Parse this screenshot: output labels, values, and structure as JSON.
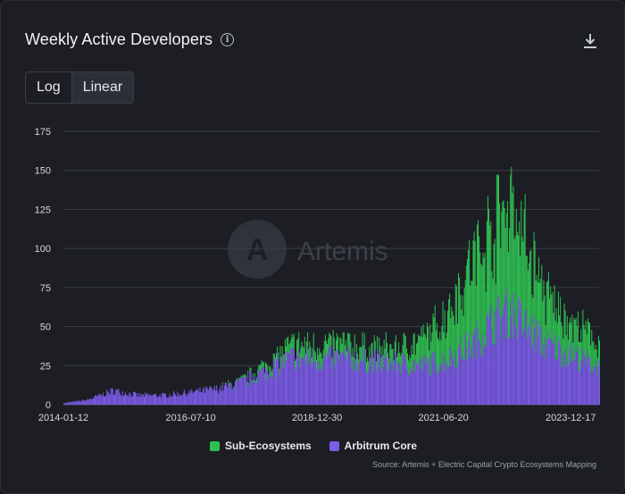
{
  "header": {
    "title": "Weekly Active Developers",
    "info_icon": "info-icon",
    "download_icon": "download-icon"
  },
  "scale_toggle": {
    "options": [
      "Log",
      "Linear"
    ],
    "selected": "Linear"
  },
  "legend": [
    {
      "label": "Sub-Ecosystems",
      "color": "#2fc152"
    },
    {
      "label": "Arbitrum Core",
      "color": "#7c5ce8"
    }
  ],
  "watermark": "Artemis",
  "source": "Source: Artemis + Electric Capital Crypto Ecosystems Mapping",
  "chart_data": {
    "type": "bar",
    "stacked": true,
    "title": "Weekly Active Developers",
    "xlabel": "",
    "ylabel": "",
    "ylim": [
      0,
      175
    ],
    "yticks": [
      0,
      25,
      50,
      75,
      100,
      125,
      150,
      175
    ],
    "xtick_labels": [
      "2014-01-12",
      "2016-07-10",
      "2018-12-30",
      "2021-06-20",
      "2023-12-17"
    ],
    "x_range": [
      "2014-01-12",
      "2024-07-07"
    ],
    "grid": true,
    "legend_position": "bottom",
    "series": [
      {
        "name": "Arbitrum Core",
        "color": "#7c5ce8",
        "points": [
          [
            "2014-01-12",
            1
          ],
          [
            "2014-07-01",
            3
          ],
          [
            "2015-01-01",
            9
          ],
          [
            "2015-07-01",
            6
          ],
          [
            "2016-01-01",
            6
          ],
          [
            "2016-07-10",
            8
          ],
          [
            "2017-01-01",
            10
          ],
          [
            "2017-07-01",
            14
          ],
          [
            "2018-01-01",
            22
          ],
          [
            "2018-07-01",
            30
          ],
          [
            "2018-12-30",
            29
          ],
          [
            "2019-07-01",
            30
          ],
          [
            "2020-01-01",
            28
          ],
          [
            "2020-07-01",
            27
          ],
          [
            "2021-01-01",
            25
          ],
          [
            "2021-06-20",
            28
          ],
          [
            "2022-01-01",
            38
          ],
          [
            "2022-07-01",
            55
          ],
          [
            "2022-10-15",
            60
          ],
          [
            "2023-01-01",
            52
          ],
          [
            "2023-07-01",
            38
          ],
          [
            "2023-12-17",
            32
          ],
          [
            "2024-07-07",
            24
          ]
        ]
      },
      {
        "name": "Sub-Ecosystems",
        "color": "#2fc152",
        "points": [
          [
            "2014-01-12",
            0
          ],
          [
            "2014-07-01",
            0
          ],
          [
            "2015-01-01",
            0
          ],
          [
            "2015-07-01",
            0
          ],
          [
            "2016-01-01",
            0
          ],
          [
            "2016-07-10",
            0
          ],
          [
            "2017-01-01",
            0
          ],
          [
            "2017-07-01",
            1
          ],
          [
            "2018-01-01",
            4
          ],
          [
            "2018-07-01",
            8
          ],
          [
            "2018-12-30",
            9
          ],
          [
            "2019-07-01",
            9
          ],
          [
            "2020-01-01",
            8
          ],
          [
            "2020-07-01",
            9
          ],
          [
            "2021-01-01",
            15
          ],
          [
            "2021-06-20",
            27
          ],
          [
            "2022-01-01",
            52
          ],
          [
            "2022-07-01",
            62
          ],
          [
            "2022-10-15",
            75
          ],
          [
            "2023-01-01",
            58
          ],
          [
            "2023-07-01",
            30
          ],
          [
            "2023-12-17",
            20
          ],
          [
            "2024-07-07",
            16
          ]
        ]
      }
    ]
  }
}
